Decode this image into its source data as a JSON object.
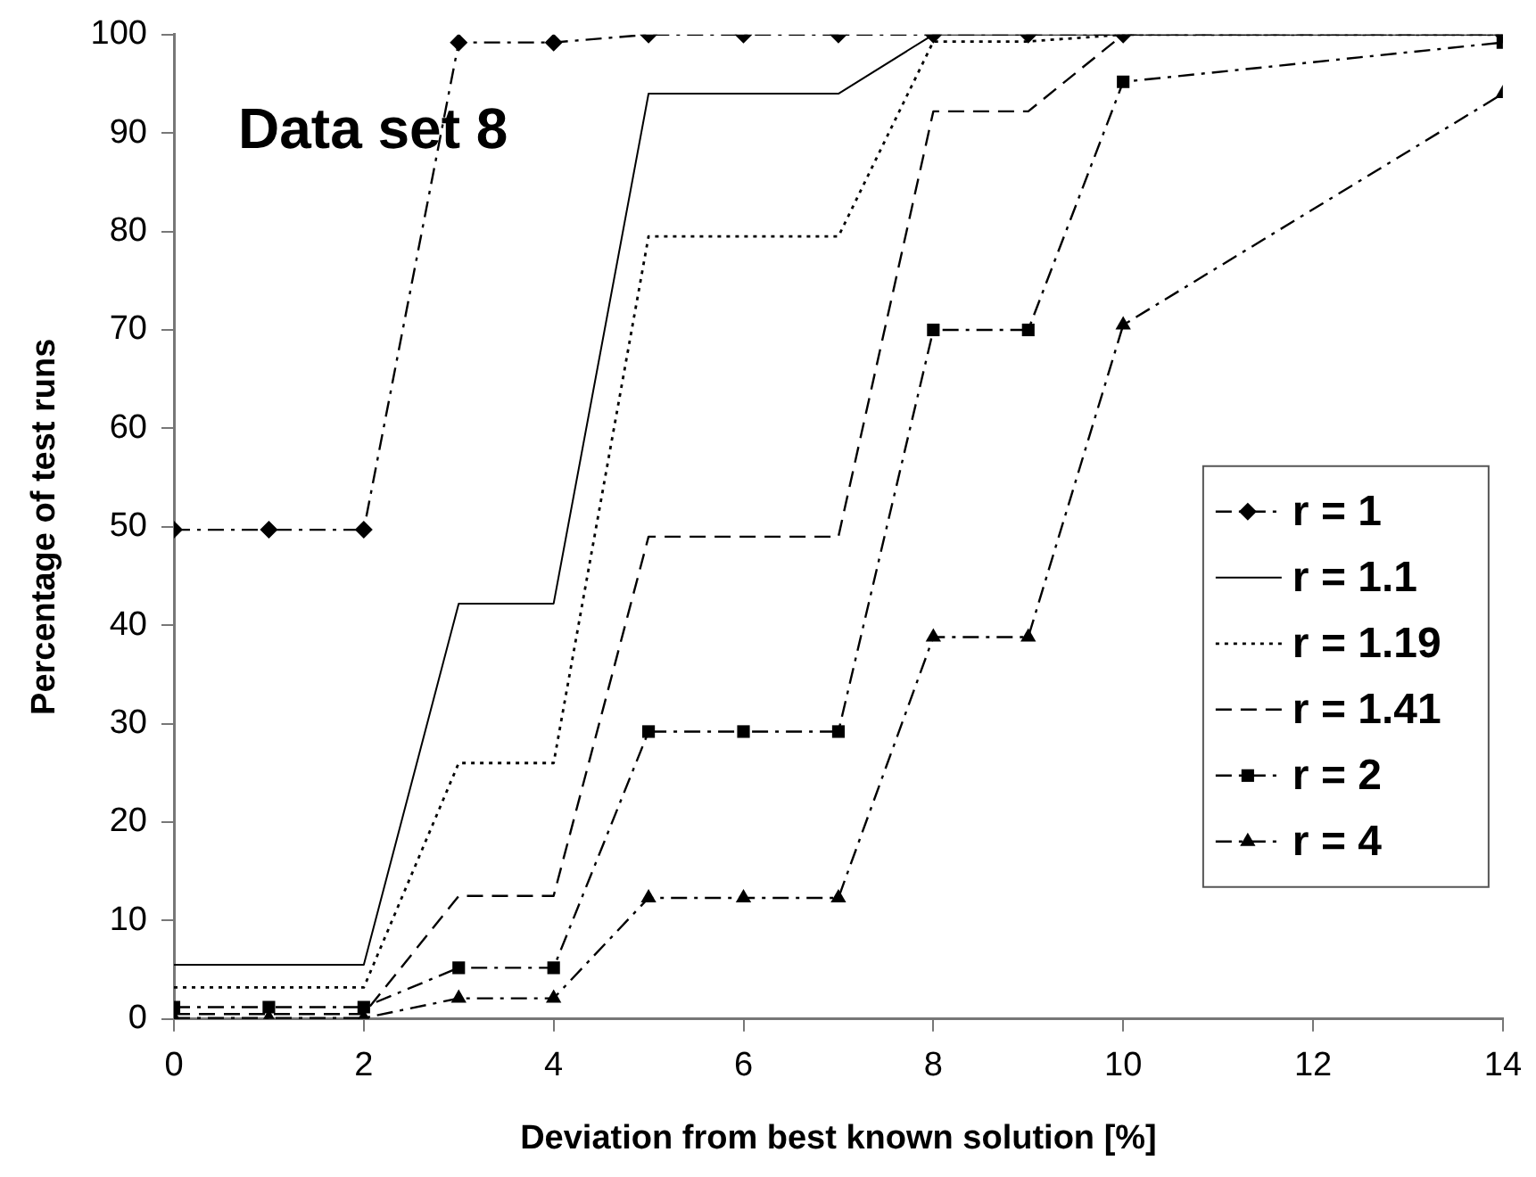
{
  "chart_data": {
    "type": "line",
    "title": "Data set 8",
    "xlabel": "Deviation from best known solution [%]",
    "ylabel": "Percentage of test runs",
    "x": [
      0,
      1,
      2,
      3,
      4,
      5,
      6,
      7,
      8,
      9,
      10,
      14
    ],
    "series": [
      {
        "name": "r = 1",
        "color": "#000000",
        "marker": "diamond",
        "line_style": "dashdot",
        "values": [
          49.7,
          49.7,
          49.7,
          99.2,
          99.2,
          100,
          100,
          100,
          100,
          100,
          100,
          100
        ]
      },
      {
        "name": "r = 1.1",
        "color": "#000000",
        "marker": "none",
        "line_style": "solid",
        "values": [
          5.5,
          5.5,
          5.5,
          42.2,
          42.2,
          94,
          94,
          94,
          100,
          100,
          100,
          100
        ]
      },
      {
        "name": "r = 1.19",
        "color": "#000000",
        "marker": "none",
        "line_style": "dotted",
        "values": [
          3.2,
          3.2,
          3.2,
          26,
          26,
          79.5,
          79.5,
          79.5,
          99.3,
          99.3,
          100,
          100
        ]
      },
      {
        "name": "r = 1.41",
        "color": "#000000",
        "marker": "none",
        "line_style": "dashed",
        "values": [
          0.5,
          0.5,
          0.5,
          12.5,
          12.5,
          49,
          49,
          49,
          92.2,
          92.2,
          100,
          100
        ]
      },
      {
        "name": "r = 2",
        "color": "#000000",
        "marker": "square",
        "line_style": "dashdot",
        "values": [
          1.2,
          1.2,
          1.2,
          5.2,
          5.2,
          29.2,
          29.2,
          29.2,
          70,
          70,
          95.2,
          99.2
        ]
      },
      {
        "name": "r = 4",
        "color": "#000000",
        "marker": "triangle",
        "line_style": "dashdot",
        "values": [
          0.1,
          0.1,
          0.1,
          2.1,
          2.1,
          12.3,
          12.3,
          12.3,
          38.8,
          38.8,
          70.5,
          94
        ]
      }
    ],
    "xlim": [
      0,
      14
    ],
    "xticks": [
      0,
      2,
      4,
      6,
      8,
      10,
      12,
      14
    ],
    "ylim": [
      0,
      100
    ],
    "yticks": [
      0,
      10,
      20,
      30,
      40,
      50,
      60,
      70,
      80,
      90,
      100
    ],
    "grid": false,
    "legend": "right"
  }
}
